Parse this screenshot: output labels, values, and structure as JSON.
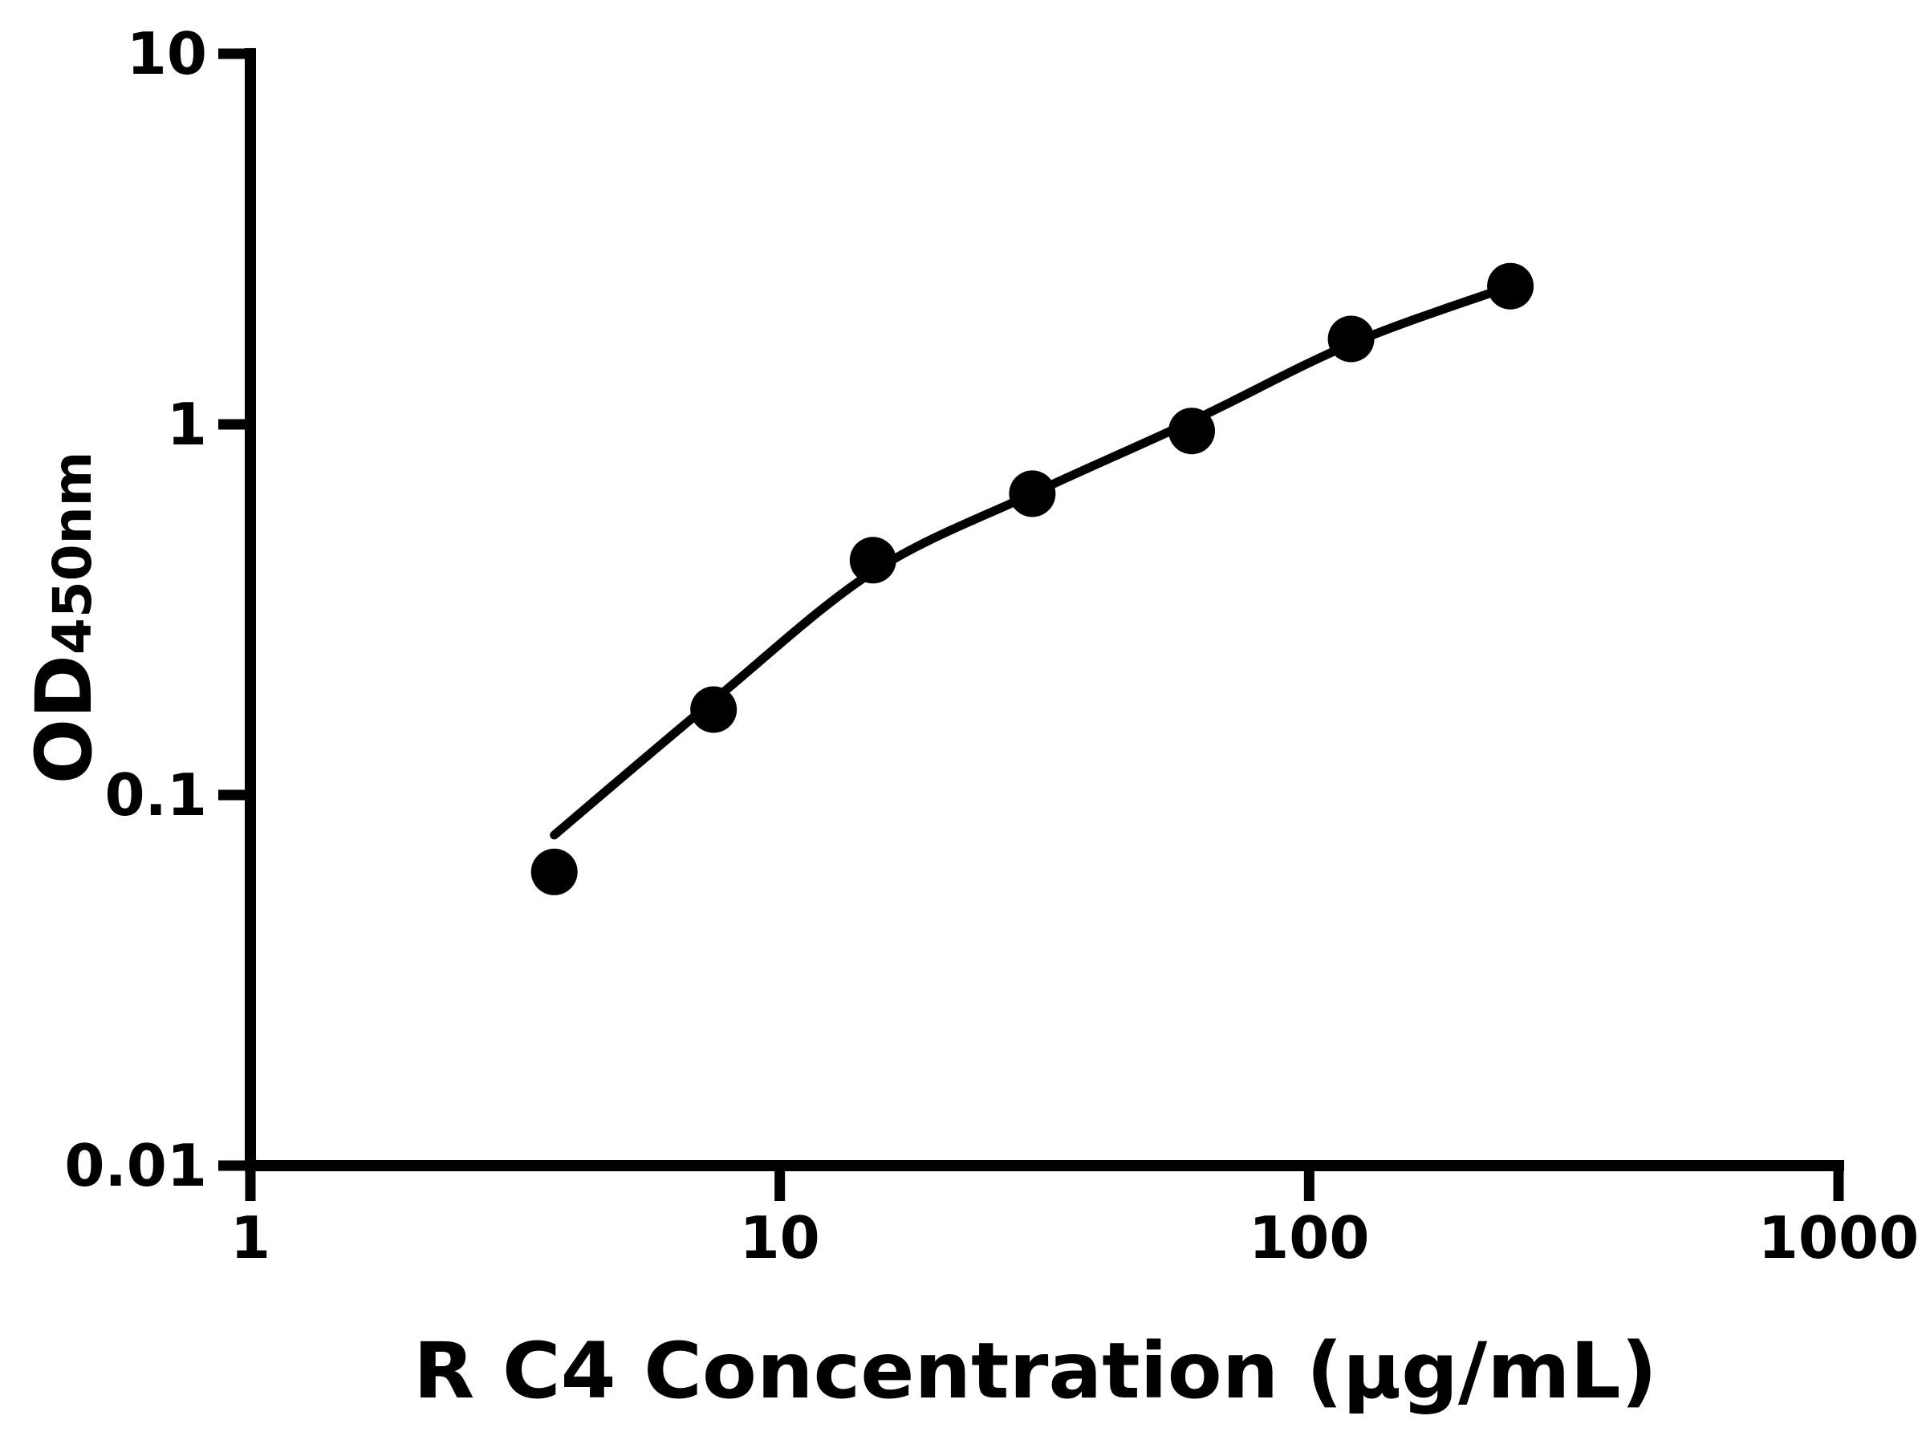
{
  "chart_data": {
    "type": "scatter",
    "title": "",
    "xlabel": "R C4 Concentration (μg/mL)",
    "ylabel": "OD450nm",
    "ylabel_main": "OD",
    "ylabel_sub": "450nm",
    "x_scale": "log",
    "y_scale": "log",
    "xlim": [
      1,
      1000
    ],
    "ylim": [
      0.01,
      10
    ],
    "grid": false,
    "legend": false,
    "x_ticks": [
      {
        "value": 1,
        "label": "1"
      },
      {
        "value": 10,
        "label": "10"
      },
      {
        "value": 100,
        "label": "100"
      },
      {
        "value": 1000,
        "label": "1000"
      }
    ],
    "y_ticks": [
      {
        "value": 10,
        "label": "10"
      },
      {
        "value": 1,
        "label": "1"
      },
      {
        "value": 0.1,
        "label": "0.1"
      },
      {
        "value": 0.01,
        "label": "0.01"
      }
    ],
    "series": [
      {
        "name": "standard-points",
        "kind": "scatter",
        "marker": "circle",
        "x": [
          3.75,
          7.5,
          15,
          30,
          60,
          120,
          240
        ],
        "y": [
          0.062,
          0.17,
          0.43,
          0.65,
          0.96,
          1.7,
          2.36
        ]
      },
      {
        "name": "fitted-curve",
        "kind": "line",
        "x": [
          3.75,
          7.5,
          15,
          30,
          60,
          120,
          240
        ],
        "y": [
          0.078,
          0.18,
          0.4,
          0.65,
          1.02,
          1.65,
          2.36
        ]
      }
    ],
    "colors": {
      "points": "#000000",
      "curve": "#000000",
      "axis": "#000000",
      "background": "#ffffff"
    }
  }
}
